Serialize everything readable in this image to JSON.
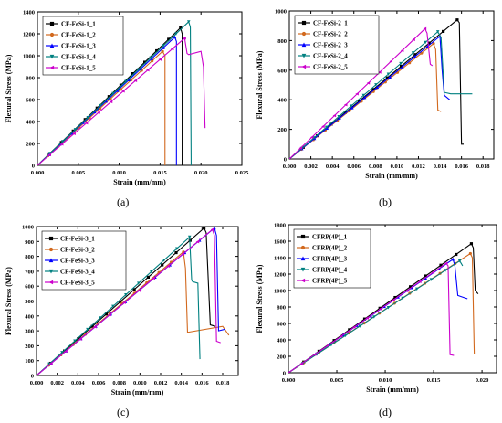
{
  "chart_data": [
    {
      "type": "line",
      "panel_label": "(a)",
      "xlabel": "Strain (mm/mm)",
      "ylabel": "Flexural Stress (MPa)",
      "xlim": [
        0,
        0.025
      ],
      "ylim": [
        0,
        1400
      ],
      "xticks": [
        0.0,
        0.005,
        0.01,
        0.015,
        0.02,
        0.025
      ],
      "xtick_labels": [
        "0.000",
        "0.005",
        "0.010",
        "0.015",
        "0.020",
        "0.025"
      ],
      "yticks": [
        0,
        200,
        400,
        600,
        800,
        1000,
        1200,
        1400
      ],
      "ytick_labels": [
        "0",
        "200",
        "400",
        "600",
        "800",
        "1000",
        "1200",
        "1400"
      ],
      "legend_position": "top-left",
      "series": [
        {
          "name": "CF-FeSi-1_1",
          "color": "#000000",
          "marker": "square",
          "x": [
            0,
            0.0175,
            0.0177,
            0.0177
          ],
          "y": [
            0,
            1255,
            1200,
            0
          ]
        },
        {
          "name": "CF-FeSi-1_2",
          "color": "#d2691e",
          "marker": "circle",
          "x": [
            0,
            0.0153,
            0.0156,
            0.0156
          ],
          "y": [
            0,
            1040,
            1000,
            0
          ]
        },
        {
          "name": "CF-FeSi-1_3",
          "color": "#0000ff",
          "marker": "triangle-up",
          "x": [
            0,
            0.0168,
            0.017,
            0.017
          ],
          "y": [
            0,
            1170,
            1130,
            0
          ]
        },
        {
          "name": "CF-FeSi-1_4",
          "color": "#008080",
          "marker": "triangle-down",
          "x": [
            0,
            0.0185,
            0.0187,
            0.0188
          ],
          "y": [
            0,
            1310,
            1260,
            0
          ]
        },
        {
          "name": "CF-FeSi-1_5",
          "color": "#cc00cc",
          "marker": "triangle-left",
          "x": [
            0,
            0.018,
            0.0183,
            0.0185,
            0.02,
            0.0203,
            0.0205
          ],
          "y": [
            0,
            1160,
            1020,
            1010,
            1040,
            900,
            340
          ]
        }
      ]
    },
    {
      "type": "line",
      "panel_label": "(b)",
      "xlabel": "Strain (mm/mm)",
      "ylabel": "Flexural Stress (MPa)",
      "xlim": [
        0,
        0.019
      ],
      "ylim": [
        0,
        1000
      ],
      "xticks": [
        0.0,
        0.002,
        0.004,
        0.006,
        0.008,
        0.01,
        0.012,
        0.014,
        0.016,
        0.018
      ],
      "xtick_labels": [
        "0.000",
        "0.002",
        "0.004",
        "0.006",
        "0.008",
        "0.010",
        "0.012",
        "0.014",
        "0.016",
        "0.018"
      ],
      "yticks": [
        0,
        200,
        400,
        600,
        800,
        1000
      ],
      "ytick_labels": [
        "0",
        "200",
        "400",
        "600",
        "800",
        "1000"
      ],
      "legend_position": "top-left",
      "series": [
        {
          "name": "CF-FeSi-2_1",
          "color": "#000000",
          "marker": "square",
          "x": [
            0,
            0.0156,
            0.0158,
            0.016,
            0.0162
          ],
          "y": [
            0,
            940,
            920,
            100,
            100
          ]
        },
        {
          "name": "CF-FeSi-2_2",
          "color": "#d2691e",
          "marker": "circle",
          "x": [
            0,
            0.0134,
            0.0136,
            0.0138,
            0.0141
          ],
          "y": [
            0,
            780,
            740,
            330,
            320
          ]
        },
        {
          "name": "CF-FeSi-2_3",
          "color": "#0000ff",
          "marker": "triangle-up",
          "x": [
            0,
            0.014,
            0.0142,
            0.0144,
            0.0149
          ],
          "y": [
            0,
            830,
            600,
            430,
            400
          ]
        },
        {
          "name": "CF-FeSi-2_4",
          "color": "#008080",
          "marker": "triangle-down",
          "x": [
            0,
            0.0138,
            0.0141,
            0.0144,
            0.015,
            0.016,
            0.017
          ],
          "y": [
            0,
            860,
            820,
            450,
            440,
            440,
            440
          ]
        },
        {
          "name": "CF-FeSi-2_5",
          "color": "#cc00cc",
          "marker": "triangle-left",
          "x": [
            0,
            0.0126,
            0.0128,
            0.0131,
            0.0133
          ],
          "y": [
            0,
            880,
            850,
            640,
            630
          ]
        }
      ]
    },
    {
      "type": "line",
      "panel_label": "(c)",
      "xlabel": "Strain (mm/mm)",
      "ylabel": "Flexural Stress (MPa)",
      "xlim": [
        0,
        0.0195
      ],
      "ylim": [
        0,
        1000
      ],
      "xticks": [
        0.0,
        0.002,
        0.004,
        0.006,
        0.008,
        0.01,
        0.012,
        0.014,
        0.016,
        0.018
      ],
      "xtick_labels": [
        "0.000",
        "0.002",
        "0.004",
        "0.006",
        "0.008",
        "0.010",
        "0.012",
        "0.014",
        "0.016",
        "0.018"
      ],
      "yticks": [
        0,
        100,
        200,
        300,
        400,
        500,
        600,
        700,
        800,
        900,
        1000
      ],
      "ytick_labels": [
        "0",
        "100",
        "200",
        "300",
        "400",
        "500",
        "600",
        "700",
        "800",
        "900",
        "1000"
      ],
      "legend_position": "top-left",
      "series": [
        {
          "name": "CF-FeSi-3_1",
          "color": "#000000",
          "marker": "square",
          "x": [
            0,
            0.0162,
            0.0164,
            0.0168,
            0.0173
          ],
          "y": [
            0,
            990,
            960,
            340,
            330
          ]
        },
        {
          "name": "CF-FeSi-3_2",
          "color": "#d2691e",
          "marker": "circle",
          "x": [
            0,
            0.0142,
            0.0144,
            0.0146,
            0.018,
            0.0186
          ],
          "y": [
            0,
            830,
            720,
            290,
            330,
            270
          ]
        },
        {
          "name": "CF-FeSi-3_3",
          "color": "#0000ff",
          "marker": "triangle-up",
          "x": [
            0,
            0.0172,
            0.0174,
            0.0176,
            0.0182
          ],
          "y": [
            0,
            990,
            940,
            300,
            310
          ]
        },
        {
          "name": "CF-FeSi-3_4",
          "color": "#008080",
          "marker": "triangle-down",
          "x": [
            0,
            0.0148,
            0.015,
            0.0151,
            0.0156,
            0.0158
          ],
          "y": [
            0,
            930,
            640,
            630,
            620,
            110
          ]
        },
        {
          "name": "CF-FeSi-3_5",
          "color": "#cc00cc",
          "marker": "triangle-left",
          "x": [
            0,
            0.017,
            0.0172,
            0.0174,
            0.0178
          ],
          "y": [
            0,
            980,
            940,
            230,
            220
          ]
        }
      ]
    },
    {
      "type": "line",
      "panel_label": "(d)",
      "xlabel": "Strain (mm/mm)",
      "ylabel": "Flexural Stress (MPa)",
      "xlim": [
        0,
        0.0215
      ],
      "ylim": [
        0,
        1800
      ],
      "xticks": [
        0.0,
        0.005,
        0.01,
        0.015,
        0.02
      ],
      "xtick_labels": [
        "0.000",
        "0.005",
        "0.010",
        "0.015",
        "0.020"
      ],
      "yticks": [
        0,
        200,
        400,
        600,
        800,
        1000,
        1200,
        1400,
        1600,
        1800
      ],
      "ytick_labels": [
        "0",
        "200",
        "400",
        "600",
        "800",
        "1000",
        "1200",
        "1400",
        "1600",
        "1800"
      ],
      "legend_position": "top-left",
      "series": [
        {
          "name": "CFRP(4P)_1",
          "color": "#000000",
          "marker": "square",
          "x": [
            0,
            0.0189,
            0.0191,
            0.0193,
            0.0196
          ],
          "y": [
            0,
            1570,
            1520,
            1000,
            960
          ]
        },
        {
          "name": "CFRP(4P)_2",
          "color": "#d2691e",
          "marker": "circle",
          "x": [
            0,
            0.0188,
            0.019,
            0.0192
          ],
          "y": [
            0,
            1450,
            1400,
            230
          ]
        },
        {
          "name": "CFRP(4P)_3",
          "color": "#0000ff",
          "marker": "triangle-up",
          "x": [
            0,
            0.017,
            0.0172,
            0.0175,
            0.0185
          ],
          "y": [
            0,
            1380,
            1300,
            940,
            900
          ]
        },
        {
          "name": "CFRP(4P)_4",
          "color": "#008080",
          "marker": "triangle-down",
          "x": [
            0,
            0.0177,
            0.0179,
            0.018
          ],
          "y": [
            0,
            1360,
            1320,
            1300
          ]
        },
        {
          "name": "CFRP(4P)_5",
          "color": "#cc00cc",
          "marker": "triangle-left",
          "x": [
            0,
            0.0163,
            0.0165,
            0.0167,
            0.0171
          ],
          "y": [
            0,
            1330,
            1300,
            220,
            210
          ]
        }
      ]
    }
  ]
}
